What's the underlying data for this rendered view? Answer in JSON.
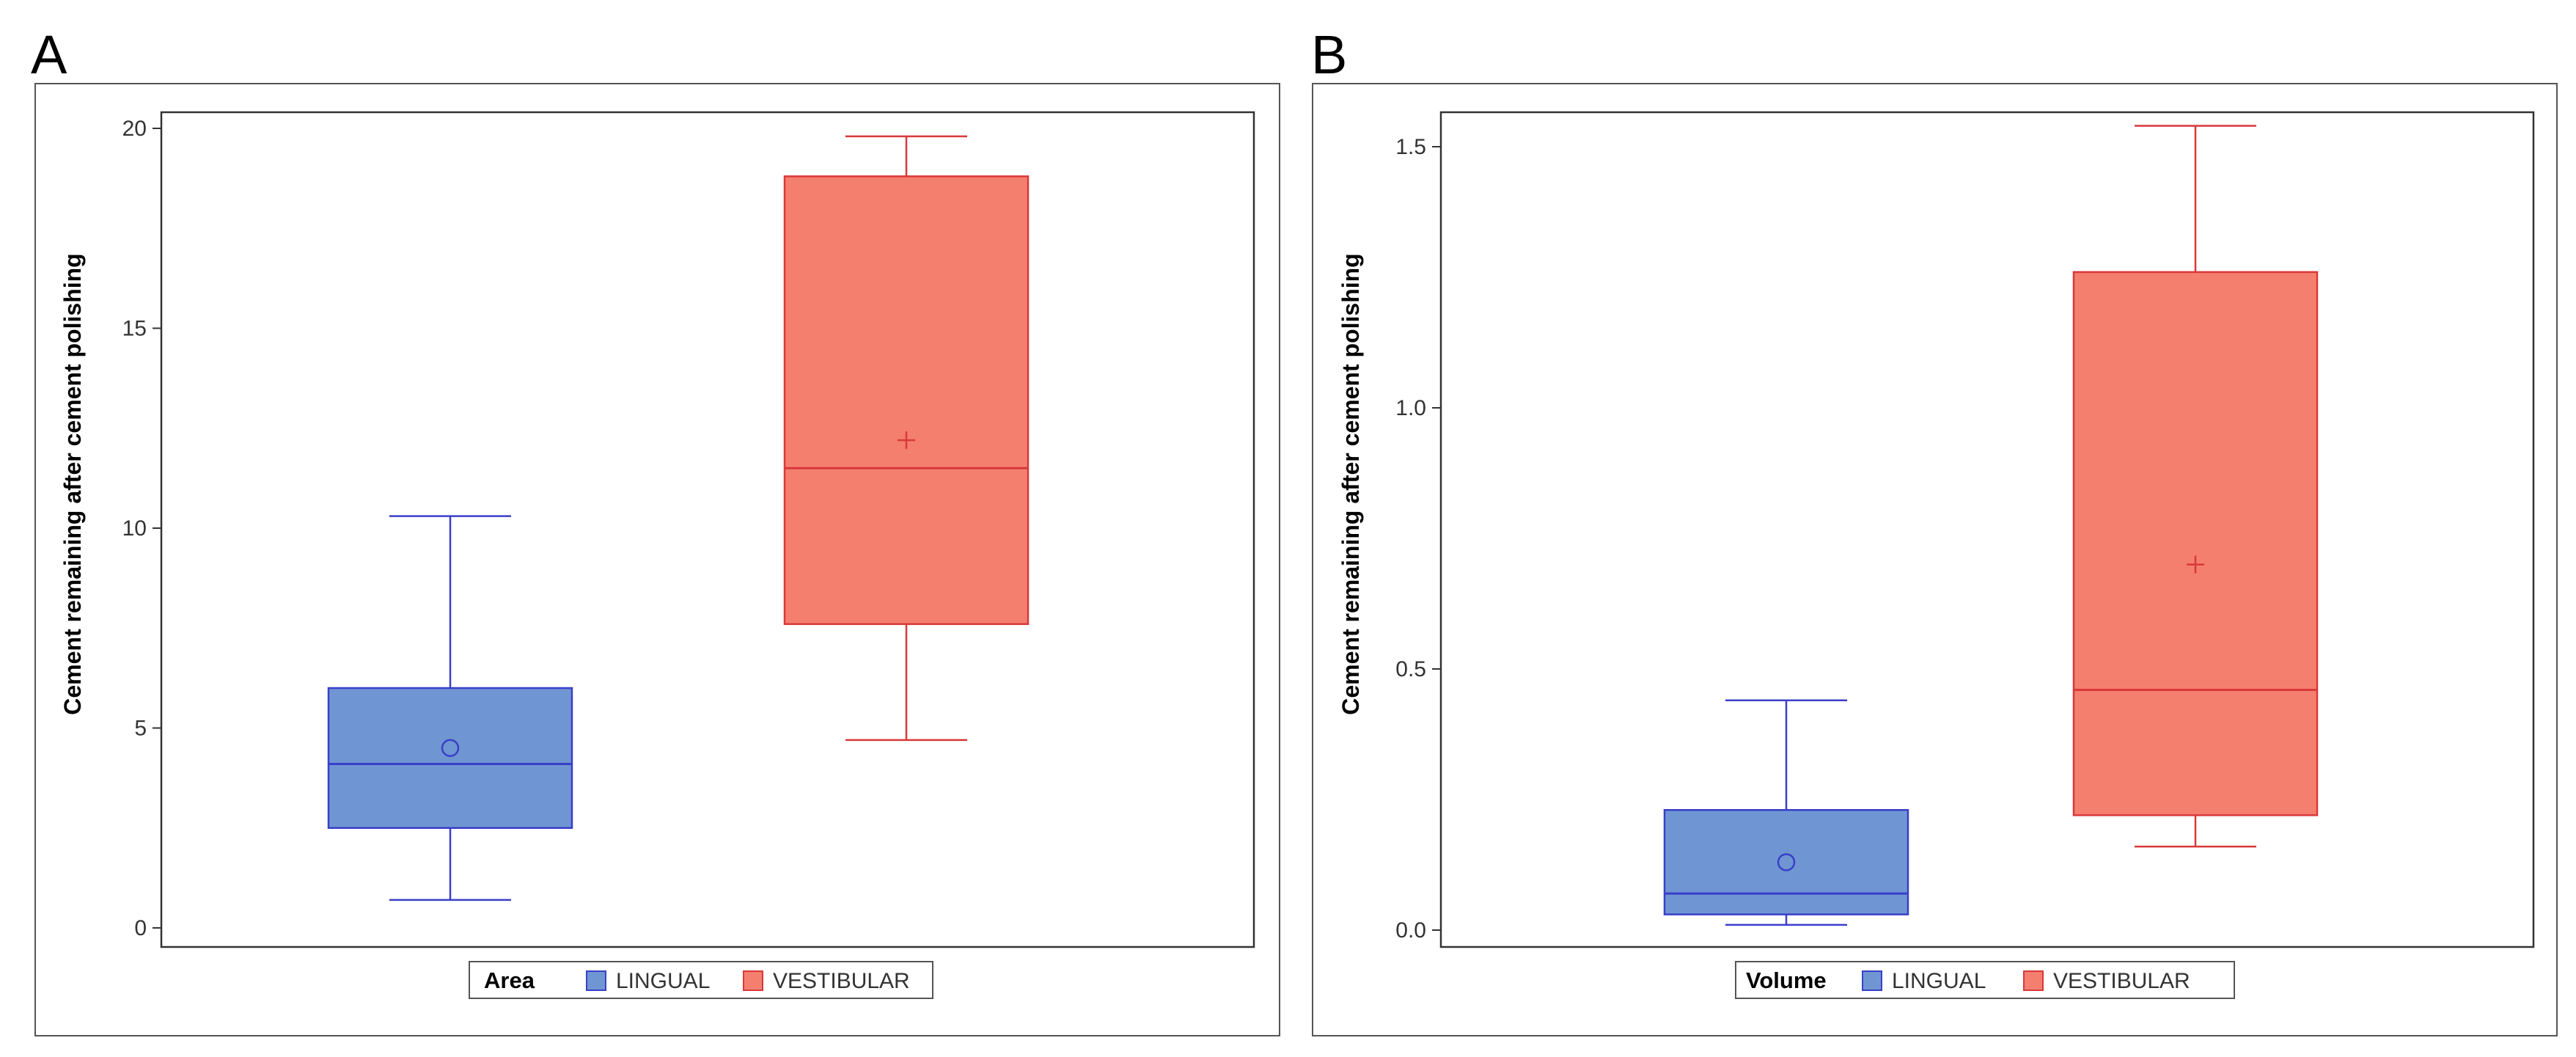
{
  "chart_data": [
    {
      "panel": "A",
      "type": "box",
      "ylabel": "Cement remaining after cement polishing",
      "ylim": [
        0,
        20
      ],
      "yticks": [
        0,
        5,
        10,
        15,
        20
      ],
      "legend": {
        "title": "Area",
        "placement": "bottom",
        "entries": [
          "LINGUAL",
          "VESTIBULAR"
        ]
      },
      "series": [
        {
          "name": "LINGUAL",
          "color": "#6F96D2",
          "edge_color": "#3A3FC9",
          "min": 0.7,
          "q1": 2.5,
          "median": 4.1,
          "q3": 6.0,
          "max": 10.3,
          "mean": 4.5,
          "mean_marker": "circle"
        },
        {
          "name": "VESTIBULAR",
          "color": "#F57F6F",
          "edge_color": "#D9383A",
          "min": 4.7,
          "q1": 7.6,
          "median": 11.5,
          "q3": 18.8,
          "max": 19.8,
          "mean": 12.2,
          "mean_marker": "plus"
        }
      ]
    },
    {
      "panel": "B",
      "type": "box",
      "ylabel": "Cement remaining after cement polishing",
      "ylim": [
        0,
        1.5
      ],
      "yticks": [
        "0.0",
        "0.5",
        "1.0",
        "1.5"
      ],
      "legend": {
        "title": "Volume",
        "placement": "bottom",
        "entries": [
          "LINGUAL",
          "VESTIBULAR"
        ]
      },
      "series": [
        {
          "name": "LINGUAL",
          "color": "#6F96D2",
          "edge_color": "#3A3FC9",
          "min": 0.01,
          "q1": 0.03,
          "median": 0.07,
          "q3": 0.23,
          "max": 0.44,
          "mean": 0.13,
          "mean_marker": "circle"
        },
        {
          "name": "VESTIBULAR",
          "color": "#F57F6F",
          "edge_color": "#D9383A",
          "min": 0.16,
          "q1": 0.22,
          "median": 0.46,
          "q3": 1.26,
          "max": 1.54,
          "mean": 0.7,
          "mean_marker": "plus"
        }
      ]
    }
  ]
}
